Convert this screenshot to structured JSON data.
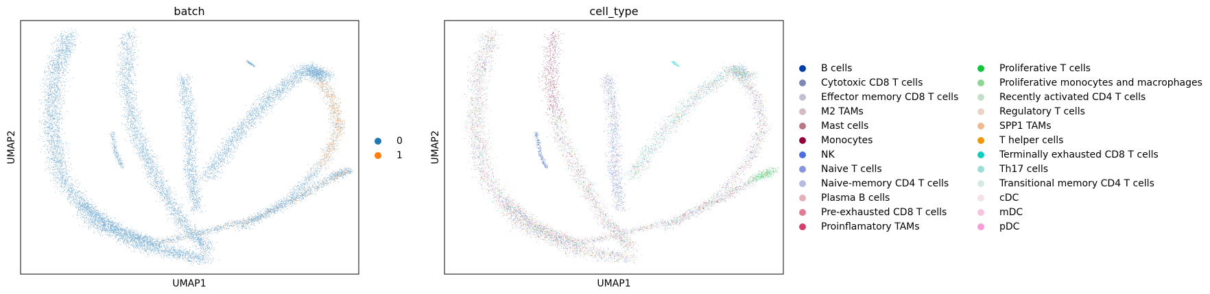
{
  "chart_data": [
    {
      "type": "scatter",
      "title": "batch",
      "xlabel": "UMAP1",
      "ylabel": "UMAP2",
      "grid": false,
      "legend_placement": "right",
      "series": [
        {
          "name": "0",
          "color": "#1f77b4"
        },
        {
          "name": "1",
          "color": "#ff7f0e"
        }
      ]
    },
    {
      "type": "scatter",
      "title": "cell_type",
      "xlabel": "UMAP1",
      "ylabel": "UMAP2",
      "grid": false,
      "legend_placement": "right",
      "series": [
        {
          "name": "B cells",
          "color": "#023fa5"
        },
        {
          "name": "Cytotoxic CD8 T cells",
          "color": "#7d87b9"
        },
        {
          "name": "Effector memory CD8 T cells",
          "color": "#bec1d4"
        },
        {
          "name": "M2 TAMs",
          "color": "#d6bcc0"
        },
        {
          "name": "Mast cells",
          "color": "#bb7784"
        },
        {
          "name": "Monocytes",
          "color": "#8e063b"
        },
        {
          "name": "NK",
          "color": "#4a6fe3"
        },
        {
          "name": "Naive T cells",
          "color": "#8595e1"
        },
        {
          "name": "Naive-memory CD4 T cells",
          "color": "#b5bbe3"
        },
        {
          "name": "Plasma B cells",
          "color": "#e6afb9"
        },
        {
          "name": "Pre-exhausted CD8 T cells",
          "color": "#e07b91"
        },
        {
          "name": "Proinflamatory TAMs",
          "color": "#d33f6a"
        },
        {
          "name": "Proliferative T cells",
          "color": "#11c638"
        },
        {
          "name": "Proliferative monocytes and macrophages",
          "color": "#8dd593"
        },
        {
          "name": "Recently activated CD4 T cells",
          "color": "#c6dec7"
        },
        {
          "name": "Regulatory T cells",
          "color": "#ead3c6"
        },
        {
          "name": "SPP1 TAMs",
          "color": "#f0b98d"
        },
        {
          "name": "T helper cells",
          "color": "#ef9708"
        },
        {
          "name": "Terminally exhausted CD8 T cells",
          "color": "#0fcfc0"
        },
        {
          "name": "Th17 cells",
          "color": "#9cded6"
        },
        {
          "name": "Transitional memory CD4 T cells",
          "color": "#d5eae7"
        },
        {
          "name": "cDC",
          "color": "#f3e1eb"
        },
        {
          "name": "mDC",
          "color": "#f6c4e1"
        },
        {
          "name": "pDC",
          "color": "#f79cd4"
        }
      ]
    }
  ]
}
